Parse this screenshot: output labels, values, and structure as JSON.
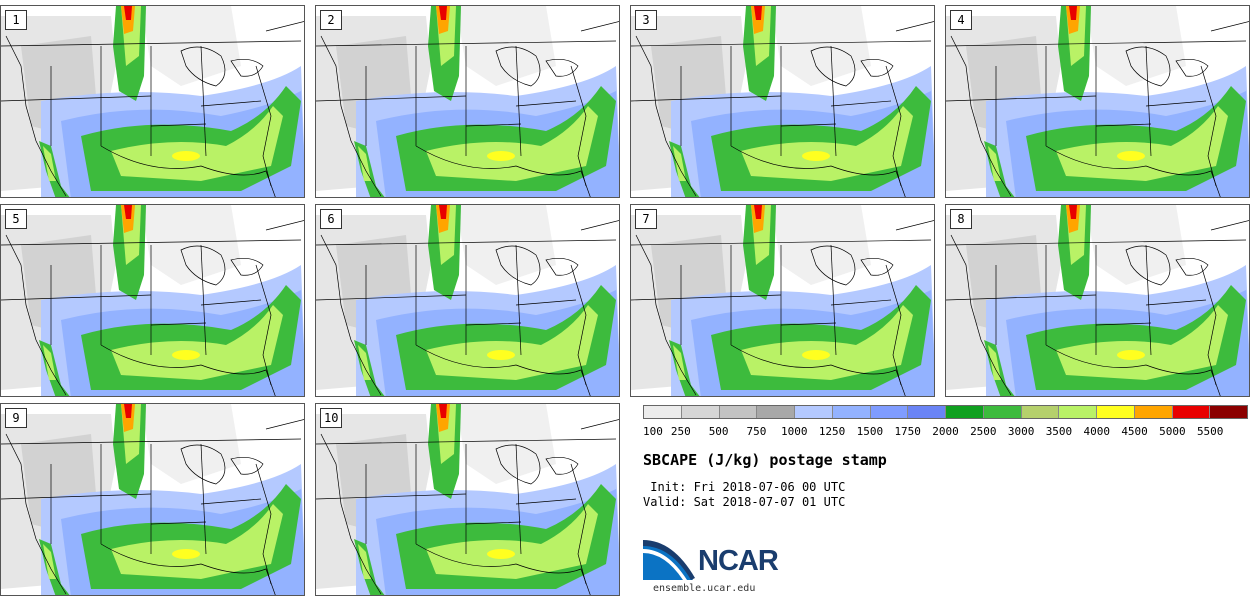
{
  "panels": [
    {
      "label": "1"
    },
    {
      "label": "2"
    },
    {
      "label": "3"
    },
    {
      "label": "4"
    },
    {
      "label": "5"
    },
    {
      "label": "6"
    },
    {
      "label": "7"
    },
    {
      "label": "8"
    },
    {
      "label": "9"
    },
    {
      "label": "10"
    }
  ],
  "colorbar": {
    "colors": [
      "#ececec",
      "#d6d6d6",
      "#c3c3c3",
      "#a8a8a8",
      "#b4c9ff",
      "#93b2ff",
      "#7f9cff",
      "#6a84f5",
      "#10a020",
      "#3dbb3d",
      "#b5d06c",
      "#b9f266",
      "#ffff20",
      "#ffa500",
      "#e80000",
      "#8b0000"
    ],
    "tick_labels": [
      "100",
      "250",
      "500",
      "750",
      "1000",
      "1250",
      "1500",
      "1750",
      "2000",
      "2500",
      "3000",
      "3500",
      "4000",
      "4500",
      "5000",
      "5500"
    ]
  },
  "title": "SBCAPE (J/kg) postage stamp",
  "init": " Init: Fri 2018-07-06 00 UTC",
  "valid": "Valid: Sat 2018-07-07 01 UTC",
  "logo": {
    "name": "NCAR",
    "url": "ensemble.ucar.edu"
  }
}
